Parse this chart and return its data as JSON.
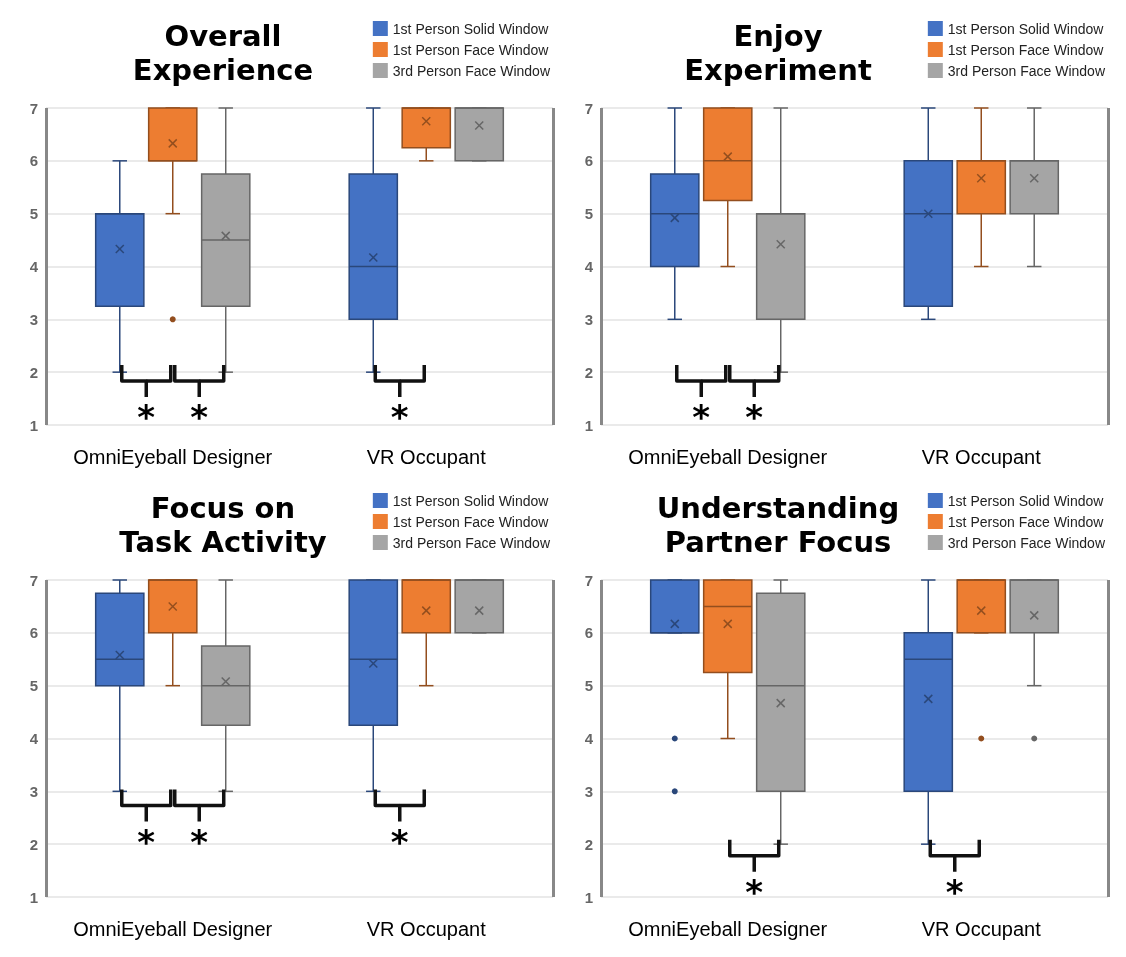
{
  "chart_data": [
    {
      "type": "box",
      "title": "Overall\nExperience",
      "categories": [
        "OmniEyeball Designer",
        "VR Occupant"
      ],
      "ylim": [
        1,
        7
      ],
      "yticks": [
        1,
        2,
        3,
        4,
        5,
        6,
        7
      ],
      "grid": true,
      "legend": "top right",
      "series": [
        {
          "name": "1st Person Solid Window",
          "color": "#4472c4",
          "boxes": [
            {
              "low": 2,
              "q1": 3.25,
              "median": 5,
              "q3": 5,
              "high": 6,
              "mean": 4.33
            },
            {
              "low": 2,
              "q1": 3,
              "median": 4,
              "q3": 5.75,
              "high": 7,
              "mean": 4.17
            }
          ]
        },
        {
          "name": "1st Person Face Window",
          "color": "#ed7d31",
          "boxes": [
            {
              "low": 5,
              "q1": 6,
              "median": 6,
              "q3": 7,
              "high": 7,
              "mean": 6.33,
              "outliers": [
                3
              ]
            },
            {
              "low": 6,
              "q1": 6.25,
              "median": 7,
              "q3": 7,
              "high": 7,
              "mean": 6.75
            }
          ]
        },
        {
          "name": "3rd Person Face Window",
          "color": "#a5a5a5",
          "boxes": [
            {
              "low": 2,
              "q1": 3.25,
              "median": 4.5,
              "q3": 5.75,
              "high": 7,
              "mean": 4.58
            },
            {
              "low": 6,
              "q1": 6,
              "median": 7,
              "q3": 7,
              "high": 7,
              "mean": 6.67
            }
          ]
        }
      ],
      "annotations": [
        "*",
        "*",
        "*"
      ]
    },
    {
      "type": "box",
      "title": "Enjoy\nExperiment",
      "categories": [
        "OmniEyeball Designer",
        "VR Occupant"
      ],
      "ylim": [
        1,
        7
      ],
      "yticks": [
        1,
        2,
        3,
        4,
        5,
        6,
        7
      ],
      "grid": true,
      "legend": "top right",
      "series": [
        {
          "name": "1st Person Solid Window",
          "color": "#4472c4",
          "boxes": [
            {
              "low": 3,
              "q1": 4,
              "median": 5,
              "q3": 5.75,
              "high": 7,
              "mean": 4.92
            },
            {
              "low": 3,
              "q1": 3.25,
              "median": 5,
              "q3": 6,
              "high": 7,
              "mean": 5
            }
          ]
        },
        {
          "name": "1st Person Face Window",
          "color": "#ed7d31",
          "boxes": [
            {
              "low": 4,
              "q1": 5.25,
              "median": 6,
              "q3": 7,
              "high": 7,
              "mean": 6.08
            },
            {
              "low": 4,
              "q1": 5,
              "median": 6,
              "q3": 6,
              "high": 7,
              "mean": 5.67
            }
          ]
        },
        {
          "name": "3rd Person Face Window",
          "color": "#a5a5a5",
          "boxes": [
            {
              "low": 2,
              "q1": 3,
              "median": 5,
              "q3": 5,
              "high": 7,
              "mean": 4.42
            },
            {
              "low": 4,
              "q1": 5,
              "median": 6,
              "q3": 6,
              "high": 7,
              "mean": 5.67
            }
          ]
        }
      ],
      "annotations": [
        "*",
        "*"
      ]
    },
    {
      "type": "box",
      "title": "Focus on\nTask Activity",
      "categories": [
        "OmniEyeball Designer",
        "VR Occupant"
      ],
      "ylim": [
        1,
        7
      ],
      "yticks": [
        1,
        2,
        3,
        4,
        5,
        6,
        7
      ],
      "grid": true,
      "legend": "top right",
      "series": [
        {
          "name": "1st Person Solid Window",
          "color": "#4472c4",
          "boxes": [
            {
              "low": 3,
              "q1": 5,
              "median": 5.5,
              "q3": 6.75,
              "high": 7,
              "mean": 5.58
            },
            {
              "low": 3,
              "q1": 4.25,
              "median": 5.5,
              "q3": 7,
              "high": 7,
              "mean": 5.42
            }
          ]
        },
        {
          "name": "1st Person Face Window",
          "color": "#ed7d31",
          "boxes": [
            {
              "low": 5,
              "q1": 6,
              "median": 7,
              "q3": 7,
              "high": 7,
              "mean": 6.5
            },
            {
              "low": 5,
              "q1": 6,
              "median": 7,
              "q3": 7,
              "high": 7,
              "mean": 6.42
            }
          ]
        },
        {
          "name": "3rd Person Face Window",
          "color": "#a5a5a5",
          "boxes": [
            {
              "low": 3,
              "q1": 4.25,
              "median": 5,
              "q3": 5.75,
              "high": 7,
              "mean": 5.08
            },
            {
              "low": 6,
              "q1": 6,
              "median": 7,
              "q3": 7,
              "high": 7,
              "mean": 6.42
            }
          ]
        }
      ],
      "annotations": [
        "*",
        "*",
        "*"
      ]
    },
    {
      "type": "box",
      "title": "Understanding\nPartner Focus",
      "categories": [
        "OmniEyeball Designer",
        "VR Occupant"
      ],
      "ylim": [
        1,
        7
      ],
      "yticks": [
        1,
        2,
        3,
        4,
        5,
        6,
        7
      ],
      "grid": true,
      "legend": "top right",
      "series": [
        {
          "name": "1st Person Solid Window",
          "color": "#4472c4",
          "boxes": [
            {
              "low": 6,
              "q1": 6,
              "median": 6,
              "q3": 7,
              "high": 7,
              "mean": 6.17,
              "outliers": [
                4,
                3
              ]
            },
            {
              "low": 2,
              "q1": 3,
              "median": 5.5,
              "q3": 6,
              "high": 7,
              "mean": 4.75
            }
          ]
        },
        {
          "name": "1st Person Face Window",
          "color": "#ed7d31",
          "boxes": [
            {
              "low": 4,
              "q1": 5.25,
              "median": 6.5,
              "q3": 7,
              "high": 7,
              "mean": 6.17
            },
            {
              "low": 6,
              "q1": 6,
              "median": 7,
              "q3": 7,
              "high": 7,
              "mean": 6.42,
              "outliers": [
                4
              ]
            }
          ]
        },
        {
          "name": "3rd Person Face Window",
          "color": "#a5a5a5",
          "boxes": [
            {
              "low": 2,
              "q1": 3,
              "median": 5,
              "q3": 6.75,
              "high": 7,
              "mean": 4.67
            },
            {
              "low": 5,
              "q1": 6,
              "median": 7,
              "q3": 7,
              "high": 7,
              "mean": 6.33,
              "outliers": [
                4
              ]
            }
          ]
        }
      ],
      "annotations": [
        "*",
        "*"
      ]
    }
  ]
}
